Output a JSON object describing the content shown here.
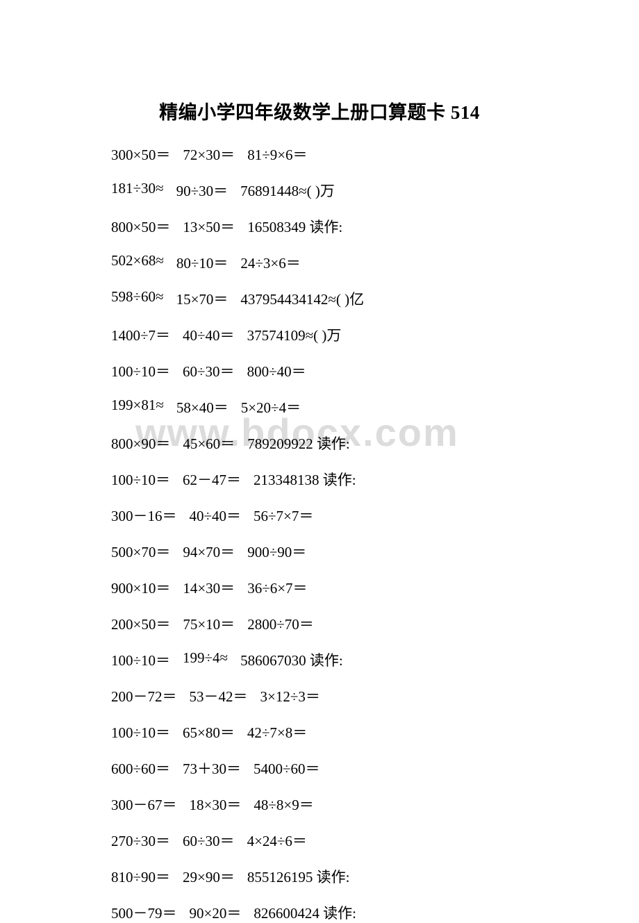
{
  "title": "精编小学四年级数学上册口算题卡 514",
  "title_fontsize": 27,
  "row_fontsize": 21,
  "text_color": "#000000",
  "background_color": "#ffffff",
  "watermark_text": "www.bdocx.com",
  "watermark_color": "#dcdcdc",
  "rows": [
    {
      "c1": "300×50＝",
      "c2": "72×30＝",
      "c3": "81÷9×6＝"
    },
    {
      "c1": "181÷30≈",
      "c2": "90÷30＝",
      "c3": "76891448≈( )万"
    },
    {
      "c1": "800×50＝",
      "c2": "13×50＝",
      "c3": "16508349 读作:"
    },
    {
      "c1": "502×68≈",
      "c2": "80÷10＝",
      "c3": "24÷3×6＝"
    },
    {
      "c1": "598÷60≈",
      "c2": "15×70＝",
      "c3": "437954434142≈( )亿"
    },
    {
      "c1": "1400÷7＝",
      "c2": "40÷40＝",
      "c3": "37574109≈( )万"
    },
    {
      "c1": "100÷10＝",
      "c2": "60÷30＝",
      "c3": "800÷40＝"
    },
    {
      "c1": "199×81≈",
      "c2": "58×40＝",
      "c3": "5×20÷4＝"
    },
    {
      "c1": "800×90＝",
      "c2": "45×60＝",
      "c3": "789209922 读作:"
    },
    {
      "c1": "100÷10＝",
      "c2": "62－47＝",
      "c3": "213348138 读作:"
    },
    {
      "c1": "300－16＝",
      "c2": "40÷40＝",
      "c3": "56÷7×7＝"
    },
    {
      "c1": "500×70＝",
      "c2": "94×70＝",
      "c3": "900÷90＝"
    },
    {
      "c1": "900×10＝",
      "c2": "14×30＝",
      "c3": "36÷6×7＝"
    },
    {
      "c1": "200×50＝",
      "c2": "75×10＝",
      "c3": "2800÷70＝"
    },
    {
      "c1": "100÷10＝",
      "c2": "199÷4≈",
      "c3": "586067030 读作:"
    },
    {
      "c1": "200－72＝",
      "c2": "53－42＝",
      "c3": "3×12÷3＝"
    },
    {
      "c1": "100÷10＝",
      "c2": "65×80＝",
      "c3": "42÷7×8＝"
    },
    {
      "c1": "600÷60＝",
      "c2": "73＋30＝",
      "c3": "5400÷60＝"
    },
    {
      "c1": "300－67＝",
      "c2": "18×30＝",
      "c3": "48÷8×9＝"
    },
    {
      "c1": "270÷30＝",
      "c2": "60÷30＝",
      "c3": "4×24÷6＝"
    },
    {
      "c1": "810÷90＝",
      "c2": "29×90＝",
      "c3": "855126195 读作:"
    },
    {
      "c1": "500－79＝",
      "c2": "90×20＝",
      "c3": "826600424 读作:"
    }
  ]
}
